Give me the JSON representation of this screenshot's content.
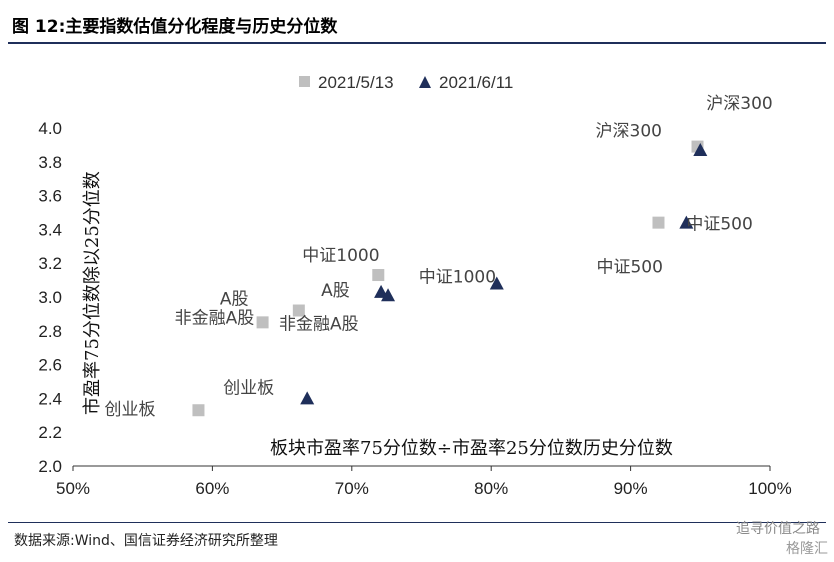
{
  "header": {
    "title": "图 12:主要指数估值分化程度与历史分位数"
  },
  "footer": {
    "source": "数据来源:Wind、国信证券经济研究所整理",
    "watermark": "追寻价值之路",
    "watermark2": "格隆汇"
  },
  "colors": {
    "series_a": "#bfbfbf",
    "series_b": "#1f2f5a",
    "title_rule": "#1f2f5a"
  },
  "chart_data": {
    "type": "scatter",
    "xlabel": "板块市盈率75分位数÷市盈率25分位数历史分位数",
    "ylabel": "市盈率75分位数除以25分位数",
    "xlim": [
      0.5,
      1.0
    ],
    "ylim": [
      2.0,
      4.0
    ],
    "x_ticks": [
      "50%",
      "60%",
      "70%",
      "80%",
      "90%",
      "100%"
    ],
    "y_ticks": [
      "2.0",
      "2.2",
      "2.4",
      "2.6",
      "2.8",
      "3.0",
      "3.2",
      "3.4",
      "3.6",
      "3.8",
      "4.0"
    ],
    "legend_position": "top-center",
    "series": [
      {
        "name": "2021/5/13",
        "marker": "square",
        "points": [
          {
            "label": "沪深300",
            "x": 0.948,
            "y": 3.89
          },
          {
            "label": "中证500",
            "x": 0.92,
            "y": 3.44
          },
          {
            "label": "中证1000",
            "x": 0.719,
            "y": 3.13
          },
          {
            "label": "A股",
            "x": 0.662,
            "y": 2.92
          },
          {
            "label": "非金融A股",
            "x": 0.636,
            "y": 2.85
          },
          {
            "label": "创业板",
            "x": 0.59,
            "y": 2.33
          }
        ]
      },
      {
        "name": "2021/6/11",
        "marker": "triangle",
        "points": [
          {
            "label": "沪深300",
            "x": 0.95,
            "y": 3.87
          },
          {
            "label": "中证500",
            "x": 0.94,
            "y": 3.44
          },
          {
            "label": "中证1000",
            "x": 0.804,
            "y": 3.08
          },
          {
            "label": "A股",
            "x": 0.721,
            "y": 3.03
          },
          {
            "label": "非金融A股",
            "x": 0.726,
            "y": 3.01
          },
          {
            "label": "创业板",
            "x": 0.668,
            "y": 2.4
          }
        ]
      }
    ]
  }
}
